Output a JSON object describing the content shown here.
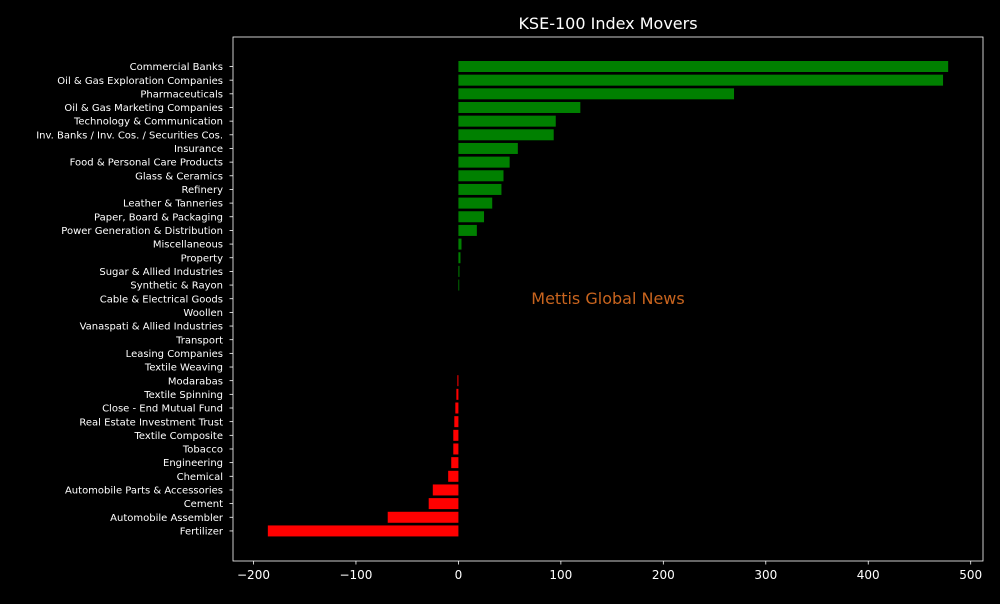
{
  "chart_data": {
    "type": "bar",
    "orientation": "horizontal",
    "title": "KSE-100 Index Movers",
    "xlabel": "",
    "ylabel": "",
    "xlim": [
      -220,
      512
    ],
    "xticks": [
      -200,
      -100,
      0,
      100,
      200,
      300,
      400,
      500
    ],
    "xtick_labels": [
      "−200",
      "−100",
      "0",
      "100",
      "200",
      "300",
      "400",
      "500"
    ],
    "grid": false,
    "legend": "none",
    "annotation": "Mettis Global News",
    "colors": {
      "background": "#000000",
      "positive": "#008000",
      "negative": "#ff0000",
      "text": "#ffffff",
      "annotation": "#c8641e",
      "frame": "#ffffff"
    },
    "categories": [
      "Commercial Banks",
      "Oil & Gas Exploration Companies",
      "Pharmaceuticals",
      "Oil & Gas Marketing Companies",
      "Technology & Communication",
      "Inv. Banks / Inv. Cos. / Securities Cos.",
      "Insurance",
      "Food & Personal Care Products",
      "Glass & Ceramics",
      "Refinery",
      "Leather & Tanneries",
      "Paper, Board & Packaging",
      "Power Generation & Distribution",
      "Miscellaneous",
      "Property",
      "Sugar & Allied Industries",
      "Synthetic & Rayon",
      "Cable & Electrical Goods",
      "Woollen",
      "Vanaspati & Allied Industries",
      "Transport",
      "Leasing Companies",
      "Textile Weaving",
      "Modarabas",
      "Textile Spinning",
      "Close - End Mutual Fund",
      "Real Estate Investment Trust",
      "Textile Composite",
      "Tobacco",
      "Engineering",
      "Chemical",
      "Automobile Parts & Accessories",
      "Cement",
      "Automobile Assembler",
      "Fertilizer"
    ],
    "values": [
      478,
      473,
      269,
      119,
      95,
      93,
      58,
      50,
      44,
      42,
      33,
      25,
      18,
      3,
      2,
      1,
      0.5,
      0,
      0,
      0,
      0,
      0,
      0,
      -1,
      -2,
      -3,
      -4,
      -5,
      -5,
      -7,
      -10,
      -25,
      -29,
      -69,
      -186
    ]
  }
}
